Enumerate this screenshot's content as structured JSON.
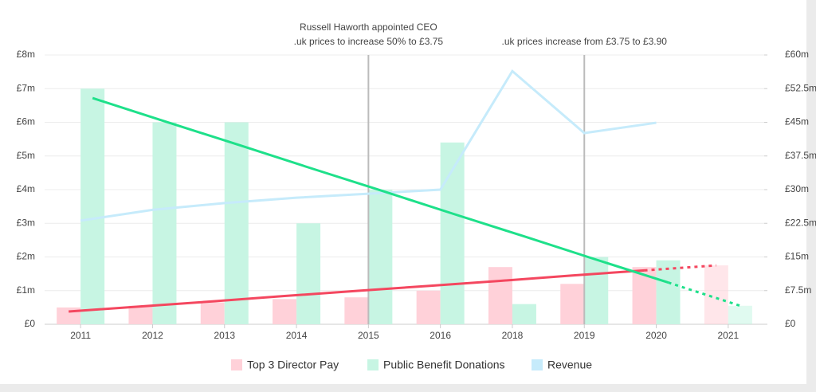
{
  "chart_data": {
    "type": "bar",
    "categories": [
      "2011",
      "2012",
      "2013",
      "2014",
      "2015",
      "2016",
      "2018",
      "2019",
      "2020",
      "2021"
    ],
    "series": [
      {
        "name": "Top 3 Director Pay",
        "color": "#ffd1d9",
        "trend_color": "#f4475f",
        "values": [
          0.5,
          0.55,
          0.65,
          0.75,
          0.8,
          1.0,
          1.7,
          1.2,
          1.7,
          1.75
        ],
        "trend": [
          0.38,
          0.53,
          0.68,
          0.84,
          0.99,
          1.14,
          1.29,
          1.45,
          1.6,
          1.75
        ]
      },
      {
        "name": "Public Benefit Donations",
        "color": "#c7f5e3",
        "trend_color": "#1ee08a",
        "values": [
          7.0,
          6.0,
          6.0,
          3.0,
          4.0,
          5.4,
          0.6,
          2.0,
          1.9,
          0.55
        ],
        "trend": [
          6.72,
          6.03,
          5.35,
          4.66,
          3.98,
          3.29,
          2.61,
          1.92,
          1.24,
          0.55
        ]
      },
      {
        "name": "Revenue",
        "color": "#c6ebfb",
        "type": "line",
        "axis": "y2",
        "values": [
          23.1,
          25.5,
          27.0,
          28.2,
          29.1,
          30.0,
          56.4,
          42.6,
          44.9,
          null
        ]
      }
    ],
    "trend_dashed_from": 8,
    "faded_last": true,
    "ylim": [
      0,
      8
    ],
    "yticks": [
      {
        "value": 0,
        "label": "£0"
      },
      {
        "value": 1,
        "label": "£1m"
      },
      {
        "value": 2,
        "label": "£2m"
      },
      {
        "value": 3,
        "label": "£3m"
      },
      {
        "value": 4,
        "label": "£4m"
      },
      {
        "value": 5,
        "label": "£5m"
      },
      {
        "value": 6,
        "label": "£6m"
      },
      {
        "value": 7,
        "label": "£7m"
      },
      {
        "value": 8,
        "label": "£8m"
      }
    ],
    "y2lim": [
      0,
      60
    ],
    "y2ticks": [
      {
        "value": 0,
        "label": "£0"
      },
      {
        "value": 7.5,
        "label": "£7.5m"
      },
      {
        "value": 15,
        "label": "£15m"
      },
      {
        "value": 22.5,
        "label": "£22.5m"
      },
      {
        "value": 30,
        "label": "£30m"
      },
      {
        "value": 37.5,
        "label": "£37.5m"
      },
      {
        "value": 45,
        "label": "£45m"
      },
      {
        "value": 52.5,
        "label": "£52.5m"
      },
      {
        "value": 60,
        "label": "£60m"
      }
    ],
    "grid": true,
    "annotations": [
      {
        "category": "2015",
        "lines": [
          "Russell Haworth appointed CEO",
          ".uk prices to increase 50% to £3.75"
        ]
      },
      {
        "category": "2019",
        "lines": [
          ".uk prices increase from £3.75 to £3.90"
        ]
      }
    ]
  }
}
